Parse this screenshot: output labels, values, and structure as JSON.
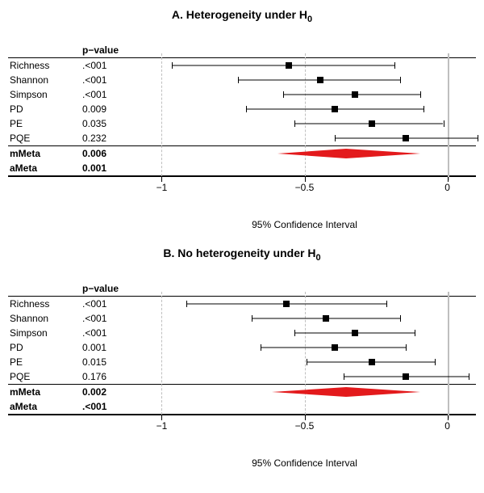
{
  "xmin": -1.1,
  "xmax": 0.1,
  "ticks": [
    -1,
    -0.5,
    0
  ],
  "tick_labels": [
    "−1",
    "−0.5",
    "0"
  ],
  "axis_title": "95% Confidence Interval",
  "pvalue_header": "p−value",
  "panels": [
    {
      "key": "A",
      "title_prefix": "A.  Heterogeneity under H",
      "title_sub": "0",
      "rows": [
        {
          "label": "Richness",
          "pval": ".<001",
          "type": "ci",
          "est": -0.56,
          "lo": -0.97,
          "hi": -0.19,
          "bold": false
        },
        {
          "label": "Shannon",
          "pval": ".<001",
          "type": "ci",
          "est": -0.45,
          "lo": -0.74,
          "hi": -0.17,
          "bold": false
        },
        {
          "label": "Simpson",
          "pval": ".<001",
          "type": "ci",
          "est": -0.33,
          "lo": -0.58,
          "hi": -0.1,
          "bold": false
        },
        {
          "label": "PD",
          "pval": "0.009",
          "type": "ci",
          "est": -0.4,
          "lo": -0.71,
          "hi": -0.09,
          "bold": false
        },
        {
          "label": "PE",
          "pval": "0.035",
          "type": "ci",
          "est": -0.27,
          "lo": -0.54,
          "hi": -0.02,
          "bold": false
        },
        {
          "label": "PQE",
          "pval": "0.232",
          "type": "ci",
          "est": -0.15,
          "lo": -0.4,
          "hi": 0.1,
          "bold": false
        },
        {
          "label": "mMeta",
          "pval": "0.006",
          "type": "diamond",
          "est": -0.36,
          "lo": -0.6,
          "hi": -0.1,
          "bold": true,
          "color": "#e31a1c",
          "rule": "thin"
        },
        {
          "label": "aMeta",
          "pval": "0.001",
          "type": "none",
          "bold": true
        }
      ]
    },
    {
      "key": "B",
      "title_prefix": "B.  No heterogeneity under H",
      "title_sub": "0",
      "rows": [
        {
          "label": "Richness",
          "pval": ".<001",
          "type": "ci",
          "est": -0.57,
          "lo": -0.92,
          "hi": -0.22,
          "bold": false
        },
        {
          "label": "Shannon",
          "pval": ".<001",
          "type": "ci",
          "est": -0.43,
          "lo": -0.69,
          "hi": -0.17,
          "bold": false
        },
        {
          "label": "Simpson",
          "pval": ".<001",
          "type": "ci",
          "est": -0.33,
          "lo": -0.54,
          "hi": -0.12,
          "bold": false
        },
        {
          "label": "PD",
          "pval": "0.001",
          "type": "ci",
          "est": -0.4,
          "lo": -0.66,
          "hi": -0.15,
          "bold": false
        },
        {
          "label": "PE",
          "pval": "0.015",
          "type": "ci",
          "est": -0.27,
          "lo": -0.5,
          "hi": -0.05,
          "bold": false
        },
        {
          "label": "PQE",
          "pval": "0.176",
          "type": "ci",
          "est": -0.15,
          "lo": -0.37,
          "hi": 0.07,
          "bold": false
        },
        {
          "label": "mMeta",
          "pval": "0.002",
          "type": "diamond",
          "est": -0.36,
          "lo": -0.62,
          "hi": -0.1,
          "bold": true,
          "color": "#e31a1c",
          "rule": "thin"
        },
        {
          "label": "aMeta",
          "pval": ".<001",
          "type": "none",
          "bold": true
        }
      ]
    }
  ]
}
